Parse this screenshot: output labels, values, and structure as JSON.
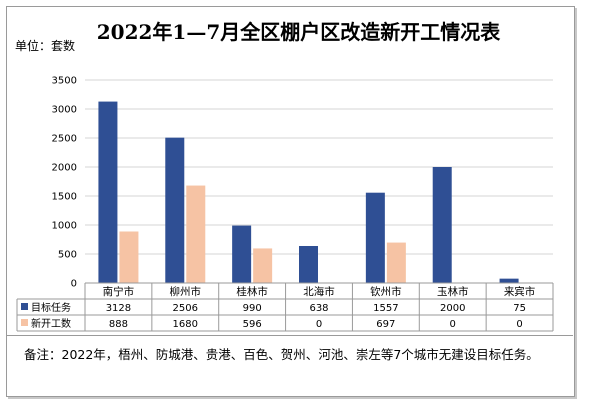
{
  "chart_data": {
    "type": "bar",
    "title": "2022年1—7月全区棚户区改造新开工情况表",
    "unit_label": "单位：套数",
    "categories": [
      "南宁市",
      "柳州市",
      "桂林市",
      "北海市",
      "钦州市",
      "玉林市",
      "来宾市"
    ],
    "series": [
      {
        "name": "目标任务",
        "color": "#2f4f94",
        "values": [
          3128,
          2506,
          990,
          638,
          1557,
          2000,
          75
        ]
      },
      {
        "name": "新开工数",
        "color": "#f6c3a4",
        "values": [
          888,
          1680,
          596,
          0,
          697,
          0,
          0
        ]
      }
    ],
    "ylim": [
      0,
      3500
    ],
    "yticks": [
      "0",
      "500",
      "1000",
      "1500",
      "2000",
      "2500",
      "3000",
      "3500"
    ],
    "grid": true,
    "legend": "data-table",
    "note": "备注：2022年，梧州、防城港、贵港、百色、贺州、河池、崇左等7个城市无建设目标任务。"
  }
}
